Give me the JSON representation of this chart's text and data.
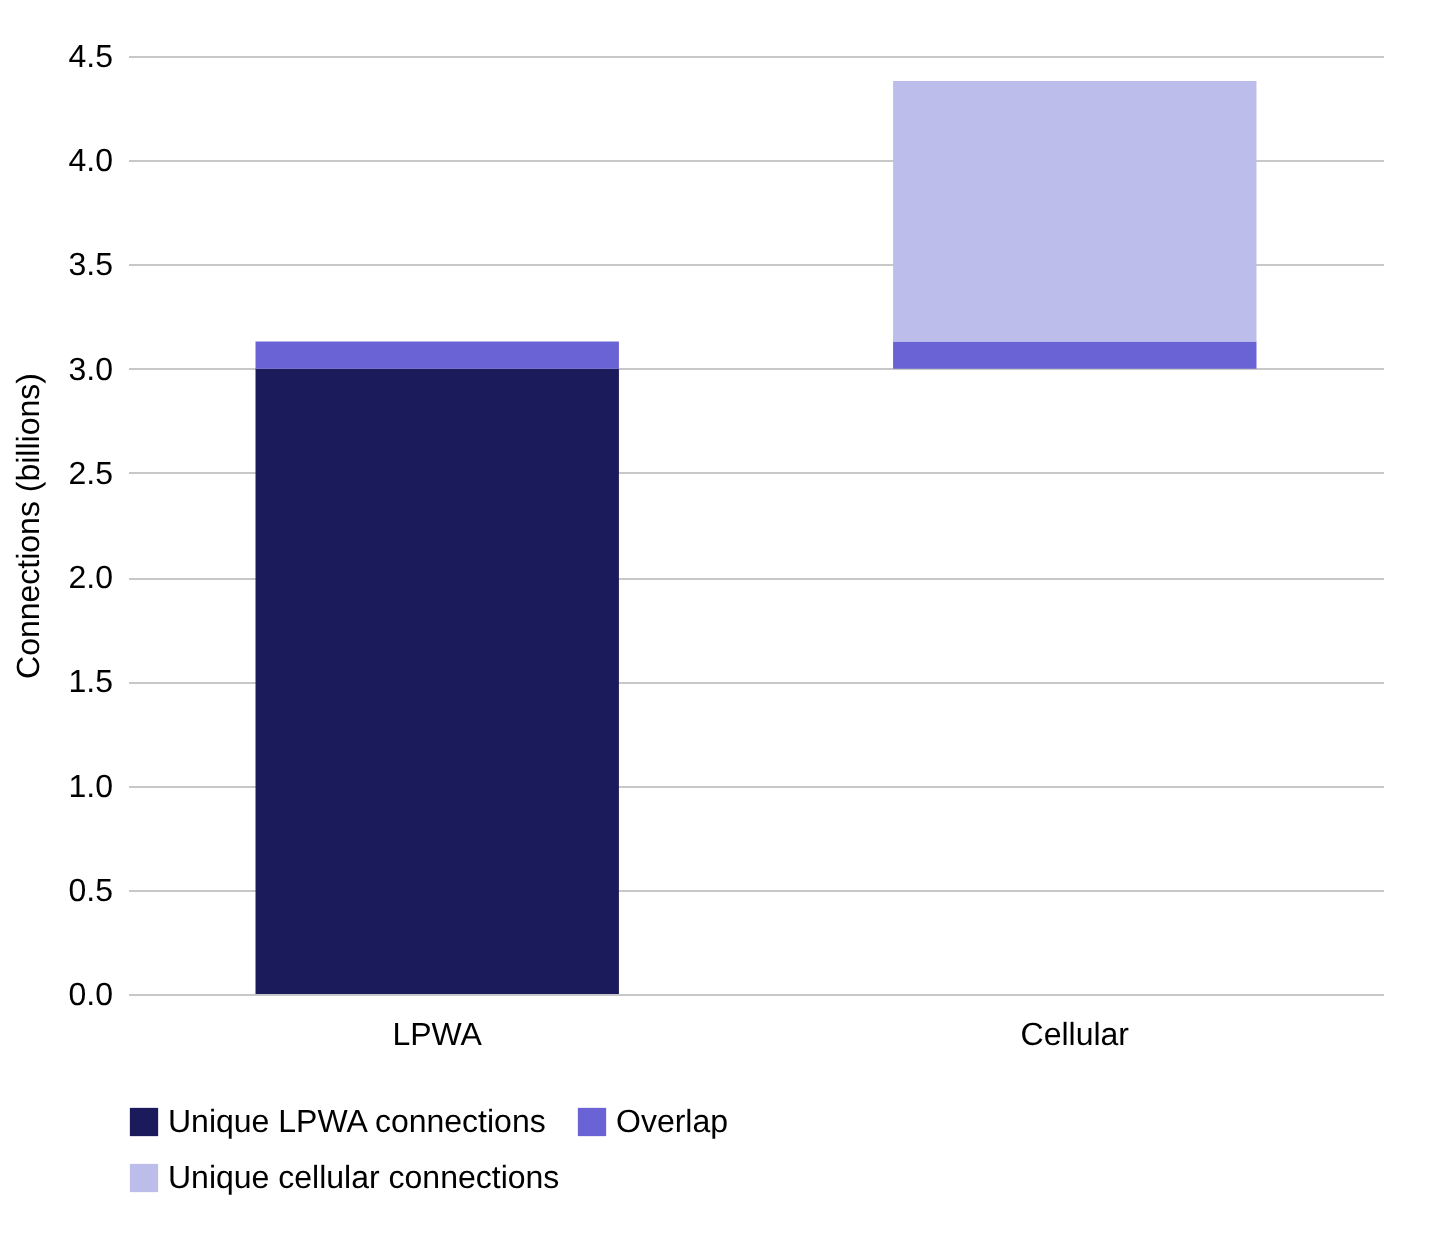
{
  "chart_data": {
    "type": "bar",
    "ylabel": "Connections (billions)",
    "categories": [
      "LPWA",
      "Cellular"
    ],
    "series": [
      {
        "name": "Unique LPWA connections",
        "color": "#1b1a5a",
        "values": [
          3.0,
          null
        ],
        "base": [
          0,
          null
        ]
      },
      {
        "name": "Overlap",
        "color": "#6a63d6",
        "values": [
          0.13,
          0.13
        ],
        "base": [
          3.0,
          3.0
        ]
      },
      {
        "name": "Unique cellular connections",
        "color": "#bdbdec",
        "values": [
          null,
          1.25
        ],
        "base": [
          null,
          3.13
        ]
      }
    ],
    "ylim": [
      0,
      4.5
    ],
    "yticks": [
      {
        "value": 0,
        "label": "0.0"
      },
      0.5,
      {
        "value": 1,
        "label": "1.0"
      },
      1.5,
      {
        "value": 2,
        "label": "2.0"
      },
      2.5,
      {
        "value": 3,
        "label": "3.0"
      },
      3.5,
      {
        "value": 4,
        "label": "4.0"
      },
      4.5
    ],
    "grid": "y",
    "legend": "bottom"
  }
}
